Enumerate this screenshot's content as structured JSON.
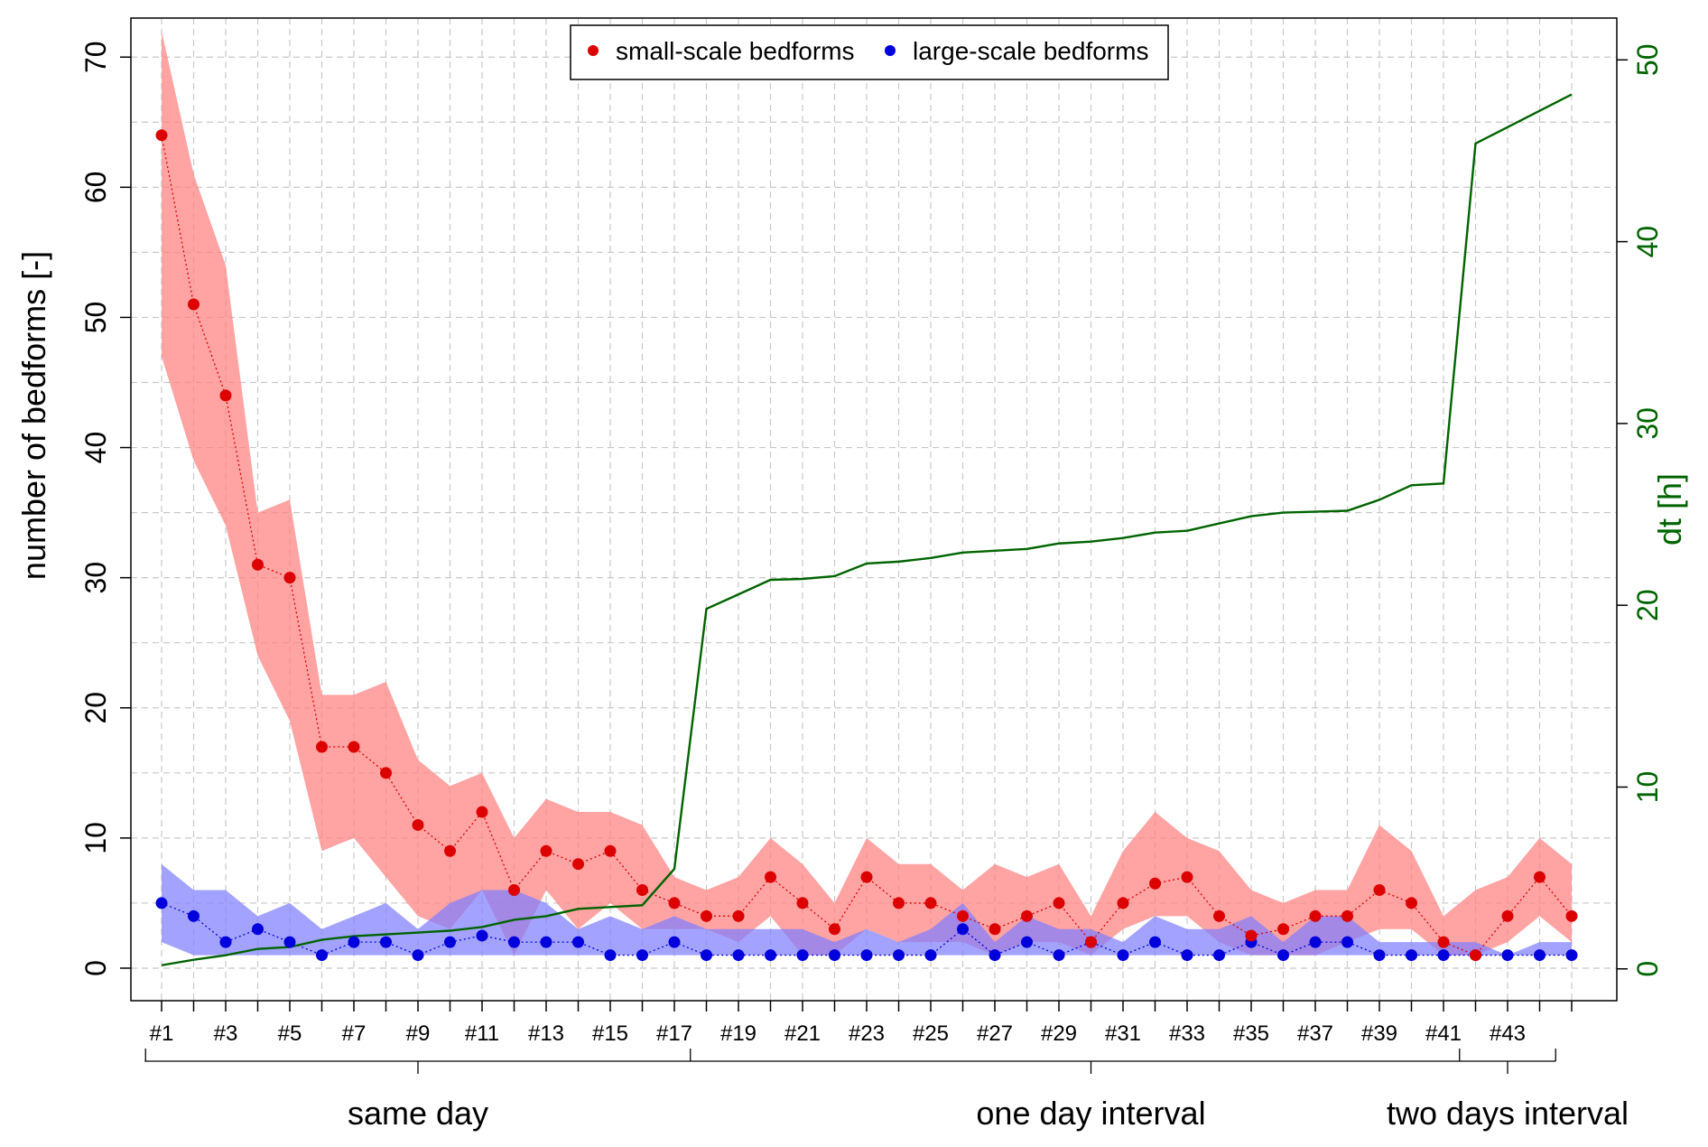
{
  "chart_data": {
    "type": "line",
    "xlabel": "",
    "ylabel": "number of bedforms [-]",
    "y2label": "dt [h]",
    "ylim": [
      -2.5,
      73
    ],
    "y2lim": [
      -1.75,
      52.3
    ],
    "yticks": [
      0,
      10,
      20,
      30,
      40,
      50,
      60,
      70
    ],
    "y2ticks": [
      0,
      10,
      20,
      30,
      40,
      50
    ],
    "x_tick_labels": [
      "#1",
      "#3",
      "#5",
      "#7",
      "#9",
      "#11",
      "#13",
      "#15",
      "#17",
      "#19",
      "#21",
      "#23",
      "#25",
      "#27",
      "#29",
      "#31",
      "#33",
      "#35",
      "#37",
      "#39",
      "#41",
      "#43"
    ],
    "grid": true,
    "legend_position": "top-center",
    "colors": {
      "small": "#dd0000",
      "small_band": "#ff7f7f",
      "large": "#0000dd",
      "large_band": "#8080ff",
      "dt": "#006400"
    },
    "series": [
      {
        "name": "small-scale bedforms",
        "values": [
          64,
          51,
          44,
          31,
          30,
          17,
          17,
          15,
          11,
          9,
          12,
          6,
          9,
          8,
          9,
          6,
          5,
          4,
          4,
          7,
          5,
          3,
          7,
          5,
          5,
          4,
          3,
          4,
          5,
          2,
          5,
          6.5,
          7,
          4,
          2.5,
          3,
          4,
          4,
          6,
          5,
          2,
          1,
          4,
          7,
          4
        ],
        "band_upper": [
          72,
          61,
          54,
          35,
          36,
          21,
          21,
          22,
          16,
          14,
          15,
          10,
          13,
          12,
          12,
          11,
          7,
          6,
          7,
          10,
          8,
          5,
          10,
          8,
          8,
          6,
          8,
          7,
          8,
          4,
          9,
          12,
          10,
          9,
          6,
          5,
          6,
          6,
          11,
          9,
          4,
          6,
          7,
          10,
          8
        ],
        "band_lower": [
          47,
          39,
          34,
          24,
          19,
          9,
          10,
          7,
          4,
          3,
          6,
          1,
          6,
          3,
          5,
          3,
          3,
          3,
          2,
          4,
          1,
          1,
          3,
          2,
          2,
          2,
          1,
          2,
          2,
          1,
          3,
          4,
          4,
          2,
          1,
          1,
          1,
          2,
          3,
          3,
          1,
          1,
          2,
          4,
          2
        ]
      },
      {
        "name": "large-scale bedforms",
        "values": [
          5,
          4,
          2,
          3,
          2,
          1,
          2,
          2,
          1,
          2,
          2.5,
          2,
          2,
          2,
          1,
          1,
          2,
          1,
          1,
          1,
          1,
          1,
          1,
          1,
          1,
          3,
          1,
          2,
          1,
          2,
          1,
          2,
          1,
          1,
          2,
          1,
          2,
          2,
          1,
          1,
          1,
          1,
          1,
          1,
          1
        ],
        "band_upper": [
          8,
          6,
          6,
          4,
          5,
          3,
          4,
          5,
          3,
          5,
          6,
          6,
          5,
          3,
          4,
          3,
          4,
          3,
          3,
          3,
          3,
          2,
          3,
          2,
          3,
          5,
          2,
          4,
          3,
          3,
          2,
          4,
          3,
          3,
          4,
          2,
          4,
          4,
          2,
          2,
          2,
          2,
          1,
          2,
          2
        ],
        "band_lower": [
          2,
          1,
          1,
          1,
          1,
          1,
          1,
          1,
          1,
          1,
          1,
          1,
          1,
          1,
          1,
          1,
          1,
          1,
          1,
          1,
          1,
          1,
          1,
          1,
          1,
          1,
          1,
          1,
          1,
          1,
          1,
          1,
          1,
          1,
          1,
          1,
          1,
          1,
          1,
          1,
          1,
          1,
          1,
          1,
          1
        ]
      },
      {
        "axis": "right",
        "values": [
          0.2,
          0.5,
          0.75,
          1.1,
          1.2,
          1.6,
          1.8,
          1.9,
          2.0,
          2.1,
          2.3,
          2.7,
          2.9,
          3.3,
          3.4,
          3.5,
          5.5,
          19.8,
          20.6,
          21.4,
          21.45,
          21.6,
          22.3,
          22.4,
          22.6,
          22.9,
          23.0,
          23.1,
          23.4,
          23.5,
          23.7,
          24.0,
          24.1,
          24.5,
          24.9,
          25.1,
          25.15,
          25.2,
          25.8,
          26.6,
          26.7,
          45.4,
          46.3,
          47.2,
          48.1
        ]
      }
    ],
    "groups": [
      {
        "label": "same day",
        "from": 0.5,
        "to": 17.5,
        "center": 9
      },
      {
        "label": "one day interval",
        "from": 17.5,
        "to": 41.5,
        "center": 30
      },
      {
        "label": "two days interval",
        "from": 41.5,
        "to": 44.5,
        "center": 43
      }
    ]
  }
}
